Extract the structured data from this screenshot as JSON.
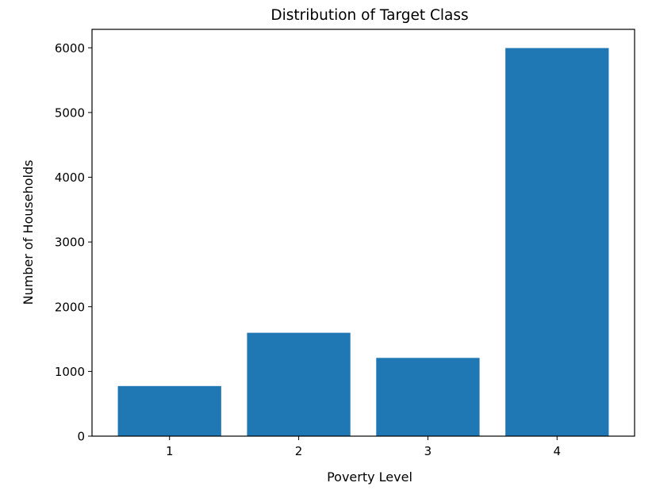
{
  "chart_data": {
    "type": "bar",
    "title": "Distribution of Target Class",
    "xlabel": "Poverty Level",
    "ylabel": "Number of Households",
    "categories": [
      "1",
      "2",
      "3",
      "4"
    ],
    "values": [
      774,
      1597,
      1209,
      5996
    ],
    "ylim": [
      0,
      6285
    ],
    "yticks": [
      0,
      1000,
      2000,
      3000,
      4000,
      5000,
      6000
    ],
    "bar_color": "#1f77b4",
    "grid": false,
    "legend": "none"
  }
}
